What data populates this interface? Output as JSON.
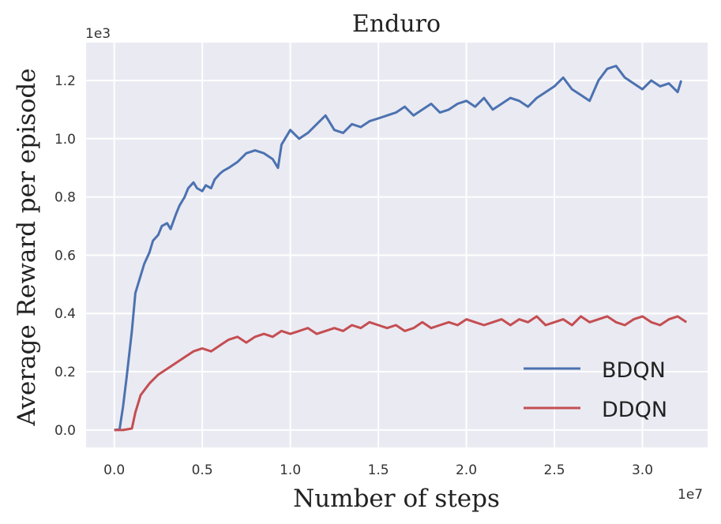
{
  "chart_data": {
    "type": "line",
    "title": "Enduro",
    "xlabel": "Number of steps",
    "ylabel": "Average Reward per episode",
    "x_offset_label": "1e7",
    "y_offset_label": "1e3",
    "xlim": [
      -0.16,
      3.37
    ],
    "ylim": [
      -0.06,
      1.33
    ],
    "xticks": [
      0.0,
      0.5,
      1.0,
      1.5,
      2.0,
      2.5,
      3.0
    ],
    "xtick_labels": [
      "0.0",
      "0.5",
      "1.0",
      "1.5",
      "2.0",
      "2.5",
      "3.0"
    ],
    "yticks": [
      0.0,
      0.2,
      0.4,
      0.6,
      0.8,
      1.0,
      1.2
    ],
    "ytick_labels": [
      "0.0",
      "0.2",
      "0.4",
      "0.6",
      "0.8",
      "1.0",
      "1.2"
    ],
    "grid": true,
    "background": "#eaeaf2",
    "legend": {
      "placement": "lower-right"
    },
    "series": [
      {
        "name": "BDQN",
        "color": "#4c72b0",
        "x": [
          0.0,
          0.03,
          0.05,
          0.07,
          0.1,
          0.12,
          0.15,
          0.17,
          0.2,
          0.22,
          0.25,
          0.27,
          0.3,
          0.32,
          0.35,
          0.37,
          0.4,
          0.42,
          0.45,
          0.47,
          0.5,
          0.52,
          0.55,
          0.57,
          0.6,
          0.62,
          0.65,
          0.7,
          0.75,
          0.8,
          0.85,
          0.9,
          0.93,
          0.95,
          1.0,
          1.05,
          1.1,
          1.15,
          1.2,
          1.25,
          1.3,
          1.35,
          1.4,
          1.45,
          1.5,
          1.55,
          1.6,
          1.65,
          1.7,
          1.75,
          1.8,
          1.85,
          1.9,
          1.95,
          2.0,
          2.05,
          2.1,
          2.15,
          2.2,
          2.25,
          2.3,
          2.35,
          2.4,
          2.45,
          2.5,
          2.55,
          2.6,
          2.65,
          2.7,
          2.75,
          2.8,
          2.85,
          2.9,
          2.95,
          3.0,
          3.05,
          3.1,
          3.15,
          3.2,
          3.22
        ],
        "values": [
          0.0,
          0.002,
          0.08,
          0.18,
          0.34,
          0.47,
          0.53,
          0.57,
          0.61,
          0.65,
          0.67,
          0.7,
          0.71,
          0.69,
          0.74,
          0.77,
          0.8,
          0.83,
          0.85,
          0.83,
          0.82,
          0.84,
          0.83,
          0.86,
          0.88,
          0.89,
          0.9,
          0.92,
          0.95,
          0.96,
          0.95,
          0.93,
          0.9,
          0.98,
          1.03,
          1.0,
          1.02,
          1.05,
          1.08,
          1.03,
          1.02,
          1.05,
          1.04,
          1.06,
          1.07,
          1.08,
          1.09,
          1.11,
          1.08,
          1.1,
          1.12,
          1.09,
          1.1,
          1.12,
          1.13,
          1.11,
          1.14,
          1.1,
          1.12,
          1.14,
          1.13,
          1.11,
          1.14,
          1.16,
          1.18,
          1.21,
          1.17,
          1.15,
          1.13,
          1.2,
          1.24,
          1.25,
          1.21,
          1.19,
          1.17,
          1.2,
          1.18,
          1.19,
          1.16,
          1.2
        ]
      },
      {
        "name": "DDQN",
        "color": "#c44e52",
        "x": [
          0.0,
          0.05,
          0.1,
          0.12,
          0.15,
          0.2,
          0.25,
          0.3,
          0.35,
          0.4,
          0.45,
          0.5,
          0.55,
          0.6,
          0.65,
          0.7,
          0.75,
          0.8,
          0.85,
          0.9,
          0.95,
          1.0,
          1.05,
          1.1,
          1.15,
          1.2,
          1.25,
          1.3,
          1.35,
          1.4,
          1.45,
          1.5,
          1.55,
          1.6,
          1.65,
          1.7,
          1.75,
          1.8,
          1.85,
          1.9,
          1.95,
          2.0,
          2.05,
          2.1,
          2.15,
          2.2,
          2.25,
          2.3,
          2.35,
          2.4,
          2.45,
          2.5,
          2.55,
          2.6,
          2.65,
          2.7,
          2.75,
          2.8,
          2.85,
          2.9,
          2.95,
          3.0,
          3.05,
          3.1,
          3.15,
          3.2,
          3.25
        ],
        "values": [
          0.0,
          0.0,
          0.005,
          0.06,
          0.12,
          0.16,
          0.19,
          0.21,
          0.23,
          0.25,
          0.27,
          0.28,
          0.27,
          0.29,
          0.31,
          0.32,
          0.3,
          0.32,
          0.33,
          0.32,
          0.34,
          0.33,
          0.34,
          0.35,
          0.33,
          0.34,
          0.35,
          0.34,
          0.36,
          0.35,
          0.37,
          0.36,
          0.35,
          0.36,
          0.34,
          0.35,
          0.37,
          0.35,
          0.36,
          0.37,
          0.36,
          0.38,
          0.37,
          0.36,
          0.37,
          0.38,
          0.36,
          0.38,
          0.37,
          0.39,
          0.36,
          0.37,
          0.38,
          0.36,
          0.39,
          0.37,
          0.38,
          0.39,
          0.37,
          0.36,
          0.38,
          0.39,
          0.37,
          0.36,
          0.38,
          0.39,
          0.37
        ]
      }
    ]
  }
}
